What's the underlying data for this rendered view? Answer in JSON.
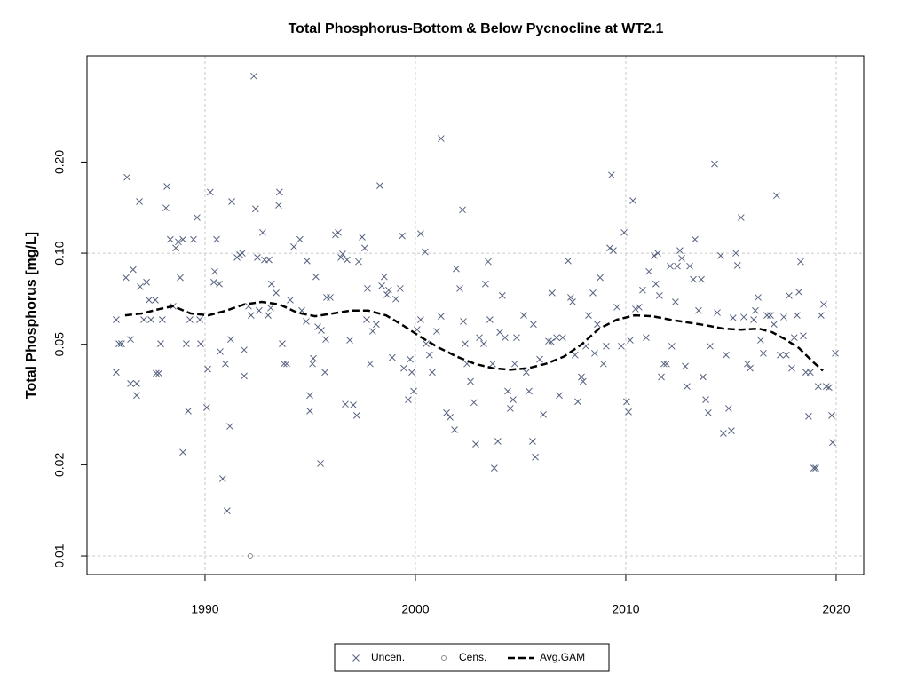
{
  "chart_data": {
    "type": "scatter",
    "title": "Total Phosphorus-Bottom & Below Pycnocline at WT2.1",
    "y_label": "Total Phosphorus [mg/L]",
    "xlim": [
      1984.39,
      2021.31
    ],
    "xticks": [
      1990,
      2000,
      2010,
      2020
    ],
    "ylim": [
      0.00868,
      0.448
    ],
    "ylog": true,
    "yticks": [
      0.01,
      0.02,
      0.05,
      {
        "value": 0.1,
        "label": "0.10"
      },
      {
        "value": 0.2,
        "label": "0.20"
      }
    ],
    "grid": true,
    "legend": "bottom",
    "series": [
      {
        "name": "Uncen.",
        "marker": "x",
        "color": "#56627f",
        "x": [
          1985.78,
          1985.78,
          1985.91,
          1986.03,
          1986.29,
          1986.24,
          1986.46,
          1986.58,
          1986.46,
          1986.75,
          1986.75,
          1986.88,
          1986.92,
          1987.09,
          1987.22,
          1987.34,
          1987.43,
          1987.64,
          1987.68,
          1987.81,
          1987.89,
          1987.97,
          1988.14,
          1988.19,
          1988.35,
          1988.48,
          1988.61,
          1988.73,
          1988.82,
          1988.95,
          1988.95,
          1989.11,
          1989.2,
          1989.28,
          1989.45,
          1989.62,
          1989.75,
          1989.79,
          1990.08,
          1990.13,
          1990.25,
          1990.42,
          1990.46,
          1990.55,
          1990.68,
          1990.72,
          1990.84,
          1990.97,
          1991.05,
          1991.18,
          1991.22,
          1991.27,
          1991.52,
          1991.65,
          1991.77,
          1991.86,
          1991.86,
          1992.07,
          1992.19,
          1992.32,
          1992.4,
          1992.49,
          1992.57,
          1992.74,
          1992.83,
          1993.0,
          1993.04,
          1993.12,
          1993.16,
          1993.38,
          1993.5,
          1993.54,
          1993.67,
          1993.75,
          1993.88,
          1994.05,
          1994.22,
          1994.51,
          1994.6,
          1994.81,
          1994.85,
          1994.98,
          1994.98,
          1995.11,
          1995.15,
          1995.27,
          1995.36,
          1995.49,
          1995.53,
          1995.7,
          1995.74,
          1995.78,
          1995.95,
          1996.2,
          1996.33,
          1996.46,
          1996.54,
          1996.67,
          1996.75,
          1996.88,
          1997.05,
          1997.21,
          1997.3,
          1997.47,
          1997.59,
          1997.68,
          1997.72,
          1997.85,
          1997.97,
          1998.14,
          1998.31,
          1998.4,
          1998.52,
          1998.65,
          1998.73,
          1998.9,
          1999.07,
          1999.28,
          1999.37,
          1999.45,
          1999.66,
          1999.75,
          1999.83,
          1999.92,
          2000.08,
          2000.25,
          2000.25,
          2000.46,
          2000.51,
          2000.67,
          2000.8,
          2001.01,
          2001.22,
          2001.22,
          2001.48,
          2001.65,
          2001.86,
          2001.94,
          2002.11,
          2002.24,
          2002.28,
          2002.36,
          2002.45,
          2002.62,
          2002.78,
          2002.87,
          2003.04,
          2003.25,
          2003.33,
          2003.46,
          2003.54,
          2003.67,
          2003.75,
          2003.92,
          2004.01,
          2004.13,
          2004.26,
          2004.39,
          2004.51,
          2004.64,
          2004.72,
          2004.81,
          2005.15,
          2005.27,
          2005.4,
          2005.57,
          2005.61,
          2005.7,
          2005.91,
          2006.08,
          2006.33,
          2006.46,
          2006.5,
          2006.71,
          2006.84,
          2007.0,
          2007.26,
          2007.38,
          2007.47,
          2007.59,
          2007.72,
          2007.89,
          2007.97,
          2008.1,
          2008.23,
          2008.44,
          2008.52,
          2008.65,
          2008.78,
          2008.94,
          2009.07,
          2009.24,
          2009.32,
          2009.41,
          2009.58,
          2009.79,
          2009.92,
          2010.04,
          2010.13,
          2010.21,
          2010.34,
          2010.46,
          2010.63,
          2010.8,
          2010.97,
          2011.1,
          2011.35,
          2011.43,
          2011.52,
          2011.6,
          2011.69,
          2011.81,
          2011.94,
          2012.11,
          2012.19,
          2012.36,
          2012.45,
          2012.57,
          2012.66,
          2012.83,
          2012.91,
          2013.04,
          2013.21,
          2013.29,
          2013.46,
          2013.59,
          2013.67,
          2013.8,
          2013.92,
          2014.01,
          2014.22,
          2014.35,
          2014.51,
          2014.64,
          2014.77,
          2014.89,
          2015.02,
          2015.1,
          2015.23,
          2015.31,
          2015.48,
          2015.61,
          2015.78,
          2015.91,
          2016.08,
          2016.16,
          2016.29,
          2016.41,
          2016.54,
          2016.71,
          2016.88,
          2017.04,
          2017.17,
          2017.34,
          2017.51,
          2017.63,
          2017.76,
          2017.89,
          2018.01,
          2018.14,
          2018.23,
          2018.31,
          2018.44,
          2018.56,
          2018.69,
          2018.77,
          2018.94,
          2019.03,
          2019.15,
          2019.28,
          2019.41,
          2019.53,
          2019.66,
          2019.79,
          2019.83,
          2019.96
        ],
        "values": [
          0.0404,
          0.0603,
          0.0502,
          0.0502,
          0.178,
          0.083,
          0.0519,
          0.0882,
          0.0371,
          0.0371,
          0.0339,
          0.148,
          0.0775,
          0.0603,
          0.0802,
          0.07,
          0.0603,
          0.07,
          0.0401,
          0.0401,
          0.0502,
          0.0603,
          0.141,
          0.166,
          0.111,
          0.0668,
          0.104,
          0.109,
          0.083,
          0.022,
          0.111,
          0.0502,
          0.0301,
          0.0603,
          0.111,
          0.131,
          0.0603,
          0.0502,
          0.0309,
          0.0414,
          0.159,
          0.0802,
          0.087,
          0.111,
          0.0791,
          0.0473,
          0.018,
          0.0431,
          0.0141,
          0.0268,
          0.0519,
          0.148,
          0.0968,
          0.0988,
          0.1,
          0.0393,
          0.0479,
          0.0668,
          0.0623,
          0.384,
          0.14,
          0.0968,
          0.0646,
          0.117,
          0.095,
          0.0623,
          0.095,
          0.0659,
          0.0791,
          0.0739,
          0.144,
          0.159,
          0.0502,
          0.0431,
          0.0431,
          0.07,
          0.105,
          0.111,
          0.0646,
          0.0595,
          0.0943,
          0.0301,
          0.0339,
          0.0431,
          0.0449,
          0.0836,
          0.0571,
          0.0202,
          0.0556,
          0.0404,
          0.0519,
          0.0714,
          0.0714,
          0.115,
          0.117,
          0.0968,
          0.0994,
          0.0317,
          0.095,
          0.0516,
          0.0315,
          0.0291,
          0.0937,
          0.113,
          0.104,
          0.0603,
          0.0764,
          0.0431,
          0.0552,
          0.0582,
          0.167,
          0.078,
          0.0836,
          0.0729,
          0.0755,
          0.0452,
          0.0705,
          0.0764,
          0.114,
          0.0417,
          0.0328,
          0.0446,
          0.0404,
          0.035,
          0.0559,
          0.0603,
          0.116,
          0.101,
          0.0502,
          0.0461,
          0.0404,
          0.0552,
          0.0619,
          0.239,
          0.0297,
          0.0287,
          0.0261,
          0.0888,
          0.0764,
          0.139,
          0.0595,
          0.0502,
          0.0431,
          0.0377,
          0.0321,
          0.0234,
          0.0526,
          0.0502,
          0.0791,
          0.0937,
          0.0603,
          0.0431,
          0.0195,
          0.0239,
          0.0548,
          0.0724,
          0.0526,
          0.035,
          0.0307,
          0.0328,
          0.0431,
          0.0526,
          0.0623,
          0.0404,
          0.035,
          0.0239,
          0.0582,
          0.0212,
          0.0446,
          0.0293,
          0.0512,
          0.0509,
          0.0739,
          0.0526,
          0.0339,
          0.0526,
          0.0943,
          0.0714,
          0.069,
          0.0461,
          0.0323,
          0.039,
          0.0377,
          0.0493,
          0.0623,
          0.0739,
          0.0467,
          0.0582,
          0.083,
          0.0431,
          0.0493,
          0.104,
          0.181,
          0.102,
          0.0663,
          0.0493,
          0.117,
          0.0323,
          0.0299,
          0.0516,
          0.149,
          0.0654,
          0.0663,
          0.0755,
          0.0526,
          0.087,
          0.0981,
          0.0791,
          0.1,
          0.0724,
          0.039,
          0.0431,
          0.0431,
          0.0906,
          0.0493,
          0.069,
          0.0906,
          0.102,
          0.0962,
          0.0423,
          0.0363,
          0.0906,
          0.0819,
          0.111,
          0.0646,
          0.0819,
          0.039,
          0.0328,
          0.0297,
          0.0493,
          0.197,
          0.0636,
          0.0981,
          0.0254,
          0.0461,
          0.0307,
          0.0259,
          0.0611,
          0.1,
          0.0911,
          0.131,
          0.0615,
          0.0431,
          0.0417,
          0.0603,
          0.0646,
          0.0714,
          0.0516,
          0.0467,
          0.0623,
          0.0623,
          0.0582,
          0.155,
          0.0461,
          0.0615,
          0.0461,
          0.0724,
          0.0417,
          0.0526,
          0.0623,
          0.0744,
          0.0937,
          0.0533,
          0.0404,
          0.0289,
          0.0404,
          0.0195,
          0.0195,
          0.0363,
          0.0623,
          0.0677,
          0.0363,
          0.036,
          0.0291,
          0.0237,
          0.0467
        ]
      },
      {
        "name": "Cens.",
        "marker": "o",
        "color": "#8a8a8a",
        "x": [
          1992.15
        ],
        "values": [
          0.01
        ]
      },
      {
        "name": "Avg.GAM",
        "marker": "dashed-line",
        "color": "#000000",
        "x": [
          1986.2,
          1987.0,
          1987.85,
          1988.48,
          1989.32,
          1990.17,
          1991.01,
          1991.86,
          1992.7,
          1993.54,
          1994.39,
          1995.23,
          1996.08,
          1996.92,
          1997.76,
          1998.61,
          1999.45,
          2000.3,
          2001.14,
          2001.98,
          2002.83,
          2003.67,
          2004.51,
          2005.36,
          2006.2,
          2007.05,
          2007.89,
          2008.73,
          2009.58,
          2010.42,
          2011.27,
          2012.11,
          2012.95,
          2013.8,
          2014.64,
          2015.48,
          2016.33,
          2016.96,
          2017.59,
          2018.23,
          2018.86,
          2019.37
        ],
        "values": [
          0.0623,
          0.0632,
          0.0654,
          0.0668,
          0.0632,
          0.0623,
          0.0646,
          0.0677,
          0.069,
          0.0677,
          0.0636,
          0.0619,
          0.0632,
          0.0646,
          0.0646,
          0.0623,
          0.0575,
          0.0526,
          0.0486,
          0.0455,
          0.0431,
          0.0417,
          0.0412,
          0.0417,
          0.0431,
          0.0455,
          0.0499,
          0.0563,
          0.0603,
          0.0623,
          0.0619,
          0.0603,
          0.059,
          0.0578,
          0.0563,
          0.0559,
          0.0563,
          0.0548,
          0.0519,
          0.0486,
          0.044,
          0.0409
        ]
      }
    ]
  }
}
